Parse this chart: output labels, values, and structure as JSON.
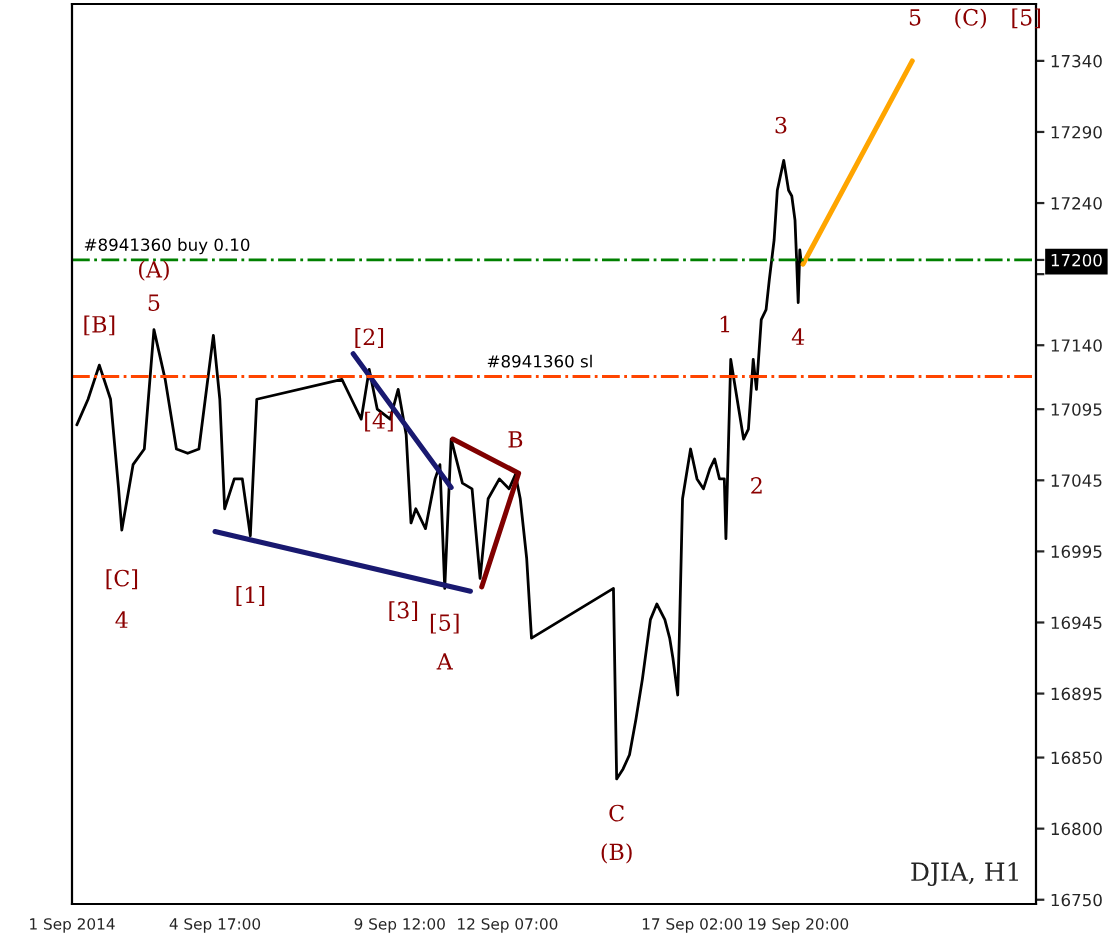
{
  "chart_data": {
    "type": "line",
    "x": [
      "2014-09-01T03:00",
      "2014-09-01T10:00",
      "2014-09-01T17:00",
      "2014-09-02T00:00",
      "2014-09-02T05:00",
      "2014-09-02T07:00",
      "2014-09-02T14:00",
      "2014-09-02T21:00",
      "2014-09-03T03:00",
      "2014-09-03T10:00",
      "2014-09-03T17:00",
      "2014-09-04T00:00",
      "2014-09-04T07:00",
      "2014-09-04T16:00",
      "2014-09-04T20:00",
      "2014-09-04T23:00",
      "2014-09-05T05:00",
      "2014-09-05T10:00",
      "2014-09-05T15:00",
      "2014-09-05T19:00",
      "2014-09-08T00:00",
      "2014-09-08T06:00",
      "2014-09-08T12:00",
      "2014-09-08T17:00",
      "2014-09-08T22:00",
      "2014-09-09T06:00",
      "2014-09-09T11:00",
      "2014-09-09T16:00",
      "2014-09-09T19:00",
      "2014-09-09T22:00",
      "2014-09-10T04:00",
      "2014-09-10T10:00",
      "2014-09-10T13:00",
      "2014-09-10T16:00",
      "2014-09-10T20:00",
      "2014-09-11T03:00",
      "2014-09-11T09:00",
      "2014-09-11T14:00",
      "2014-09-11T19:00",
      "2014-09-12T02:00",
      "2014-09-12T08:00",
      "2014-09-12T12:00",
      "2014-09-12T15:00",
      "2014-09-12T19:00",
      "2014-09-12T22:00",
      "2014-09-15T01:00",
      "2014-09-15T03:00",
      "2014-09-15T07:00",
      "2014-09-15T11:00",
      "2014-09-15T15:00",
      "2014-09-15T19:00",
      "2014-09-16T00:00",
      "2014-09-16T04:00",
      "2014-09-16T09:00",
      "2014-09-16T12:00",
      "2014-09-16T14:00",
      "2014-09-16T17:00",
      "2014-09-16T18:00",
      "2014-09-16T20:00",
      "2014-09-17T01:00",
      "2014-09-17T05:00",
      "2014-09-17T09:00",
      "2014-09-17T13:00",
      "2014-09-17T16:00",
      "2014-09-17T19:00",
      "2014-09-17T22:00",
      "2014-09-17T23:00",
      "2014-09-18T02:00",
      "2014-09-18T10:00",
      "2014-09-18T13:00",
      "2014-09-18T16:00",
      "2014-09-18T18:00",
      "2014-09-18T21:00",
      "2014-09-19T00:00",
      "2014-09-19T02:00",
      "2014-09-19T05:00",
      "2014-09-19T07:00",
      "2014-09-19T11:00",
      "2014-09-19T14:00",
      "2014-09-19T16:00",
      "2014-09-19T18:00",
      "2014-09-19T19:00",
      "2014-09-19T20:00",
      "2014-09-19T21:00",
      "2014-09-19T22:00"
    ],
    "series": [
      {
        "color": "#000000",
        "values": [
          17084,
          17102,
          17126,
          17102,
          17039,
          17010,
          17056,
          17067,
          17151,
          17116,
          17067,
          17064,
          17067,
          17147,
          17102,
          17025,
          17046,
          17046,
          17006,
          17102,
          17116,
          17102,
          17088,
          17123,
          17095,
          17088,
          17109,
          17077,
          17015,
          17025,
          17011,
          17046,
          17056,
          16969,
          17074,
          17043,
          17039,
          16976,
          17032,
          17046,
          17039,
          17049,
          17032,
          16990,
          16934,
          16969,
          16835,
          16842,
          16852,
          16877,
          16905,
          16947,
          16958,
          16947,
          16934,
          16920,
          16894,
          16934,
          17032,
          17067,
          17046,
          17039,
          17053,
          17060,
          17046,
          17046,
          17004,
          17130,
          17074,
          17081,
          17130,
          17109,
          17158,
          17165,
          17186,
          17214,
          17249,
          17270,
          17249,
          17245,
          17228,
          17200,
          17170,
          17207,
          17197
        ]
      },
      {
        "x": [
          "2014-09-19T23:00",
          "2014-09-22T19:00"
        ],
        "color": "#ffa500",
        "values": [
          17197,
          17340
        ]
      },
      {
        "x": [
          "2014-09-08T07:00",
          "2014-09-10T20:00"
        ],
        "color": "#191970",
        "values": [
          17134,
          17040
        ]
      },
      {
        "x": [
          "2014-09-04T17:00",
          "2014-09-11T08:00"
        ],
        "color": "#191970",
        "values": [
          17009,
          16967
        ]
      },
      {
        "x": [
          "2014-09-10T21:00",
          "2014-09-12T14:00",
          "2014-09-11T15:00"
        ],
        "color": "#800000",
        "values": [
          17074,
          17050,
          16970
        ]
      }
    ],
    "xlim": [
      "2014-09-01T00:00",
      "2014-09-26T00:00"
    ],
    "xticks": [
      {
        "value": "2014-09-01T00:00",
        "label": "1 Sep 2014"
      },
      {
        "value": "2014-09-04T17:00",
        "label": "4 Sep 17:00"
      },
      {
        "value": "2014-09-09T12:00",
        "label": "9 Sep 12:00"
      },
      {
        "value": "2014-09-12T07:00",
        "label": "12 Sep 07:00"
      },
      {
        "value": "2014-09-17T02:00",
        "label": "17 Sep 02:00"
      },
      {
        "value": "2014-09-19T20:00",
        "label": "19 Sep 20:00"
      }
    ],
    "ylim": [
      16747,
      17380
    ],
    "yticks": [
      16750,
      16800,
      16850,
      16895,
      16945,
      16995,
      17045,
      17095,
      17140,
      {
        "value": 17190,
        "label": null
      },
      17200,
      17240,
      17290,
      17340
    ],
    "grid": false,
    "legend": false,
    "ref_lines": [
      {
        "axis": "y",
        "value": 17200,
        "label": "#8941360 buy 0.10",
        "color": "#008000",
        "line_style": "dashdot"
      },
      {
        "axis": "y",
        "value": 17118,
        "label": "#8941360 sl",
        "color": "#ff4500",
        "line_style": "dashdot"
      }
    ],
    "annotations": [
      "(A)",
      "5",
      "[B]",
      "[C]",
      "4",
      "[1]",
      "[2]",
      "[3]",
      "[4]",
      "[5]",
      "A",
      "B",
      "C",
      "(B)",
      "1",
      "2",
      "3",
      "4",
      "5",
      "(C)",
      "[5]",
      "DJIA, H1"
    ]
  }
}
